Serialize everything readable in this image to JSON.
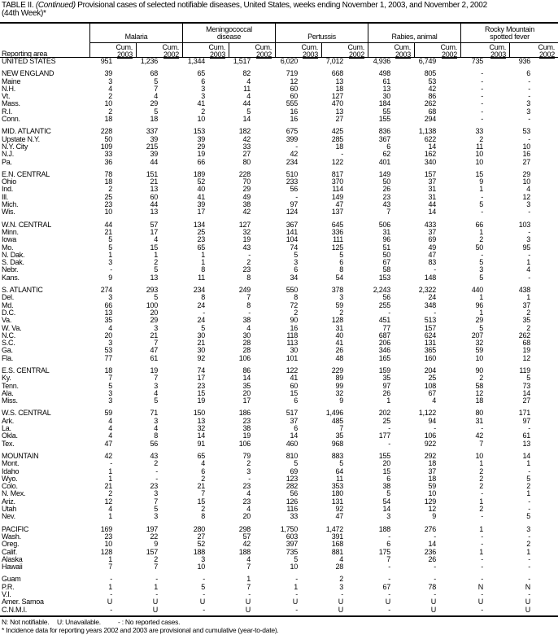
{
  "title": {
    "prefix": "TABLE II. ",
    "continued": "(Continued)",
    "text": " Provisional cases of selected notifiable diseases, United States, weeks ending November 1, 2003, and November 2, 2002",
    "line2": "(44th Week)*"
  },
  "header": {
    "reporting_area": "Reporting area",
    "groups": [
      {
        "l1": "",
        "l2": "Malaria"
      },
      {
        "l1": "Meningococcal",
        "l2": "disease"
      },
      {
        "l1": "",
        "l2": "Pertussis"
      },
      {
        "l1": "",
        "l2": "Rabies, animal"
      },
      {
        "l1": "Rocky Mountain",
        "l2": "spotted fever"
      }
    ],
    "sub": [
      {
        "l1": "Cum.",
        "l2": "2003"
      },
      {
        "l1": "Cum.",
        "l2": "2002"
      }
    ]
  },
  "rows": [
    [
      "UNITED STATES",
      "951",
      "1,236",
      "1,344",
      "1,517",
      "6,020",
      "7,012",
      "4,936",
      "6,749",
      "735",
      "936"
    ],
    [
      "NEW ENGLAND",
      "39",
      "68",
      "65",
      "82",
      "719",
      "668",
      "498",
      "805",
      "-",
      "6"
    ],
    [
      "Maine",
      "3",
      "5",
      "6",
      "4",
      "12",
      "13",
      "61",
      "53",
      "-",
      "-"
    ],
    [
      "N.H.",
      "4",
      "7",
      "3",
      "11",
      "60",
      "18",
      "13",
      "42",
      "-",
      "-"
    ],
    [
      "Vt.",
      "2",
      "4",
      "3",
      "4",
      "60",
      "127",
      "30",
      "86",
      "-",
      "-"
    ],
    [
      "Mass.",
      "10",
      "29",
      "41",
      "44",
      "555",
      "470",
      "184",
      "262",
      "-",
      "3"
    ],
    [
      "R.I.",
      "2",
      "5",
      "2",
      "5",
      "16",
      "13",
      "55",
      "68",
      "-",
      "3"
    ],
    [
      "Conn.",
      "18",
      "18",
      "10",
      "14",
      "16",
      "27",
      "155",
      "294",
      "-",
      "-"
    ],
    [
      "MID. ATLANTIC",
      "228",
      "337",
      "153",
      "182",
      "675",
      "425",
      "836",
      "1,138",
      "33",
      "53"
    ],
    [
      "Upstate N.Y.",
      "50",
      "39",
      "39",
      "42",
      "399",
      "285",
      "367",
      "622",
      "2",
      "-"
    ],
    [
      "N.Y. City",
      "109",
      "215",
      "29",
      "33",
      "-",
      "18",
      "6",
      "14",
      "11",
      "10"
    ],
    [
      "N.J.",
      "33",
      "39",
      "19",
      "27",
      "42",
      "-",
      "62",
      "162",
      "10",
      "16"
    ],
    [
      "Pa.",
      "36",
      "44",
      "66",
      "80",
      "234",
      "122",
      "401",
      "340",
      "10",
      "27"
    ],
    [
      "E.N. CENTRAL",
      "78",
      "151",
      "189",
      "228",
      "510",
      "817",
      "149",
      "157",
      "15",
      "29"
    ],
    [
      "Ohio",
      "18",
      "21",
      "52",
      "70",
      "233",
      "370",
      "50",
      "37",
      "9",
      "10"
    ],
    [
      "Ind.",
      "2",
      "13",
      "40",
      "29",
      "56",
      "114",
      "26",
      "31",
      "1",
      "4"
    ],
    [
      "Ill.",
      "25",
      "60",
      "41",
      "49",
      "-",
      "149",
      "23",
      "31",
      "-",
      "12"
    ],
    [
      "Mich.",
      "23",
      "44",
      "39",
      "38",
      "97",
      "47",
      "43",
      "44",
      "5",
      "3"
    ],
    [
      "Wis.",
      "10",
      "13",
      "17",
      "42",
      "124",
      "137",
      "7",
      "14",
      "-",
      "-"
    ],
    [
      "W.N. CENTRAL",
      "44",
      "57",
      "134",
      "127",
      "367",
      "645",
      "506",
      "433",
      "66",
      "103"
    ],
    [
      "Minn.",
      "21",
      "17",
      "25",
      "32",
      "141",
      "336",
      "31",
      "37",
      "1",
      "-"
    ],
    [
      "Iowa",
      "5",
      "4",
      "23",
      "19",
      "104",
      "111",
      "96",
      "69",
      "2",
      "3"
    ],
    [
      "Mo.",
      "5",
      "15",
      "65",
      "43",
      "74",
      "125",
      "51",
      "49",
      "50",
      "95"
    ],
    [
      "N. Dak.",
      "1",
      "1",
      "1",
      "-",
      "5",
      "5",
      "50",
      "47",
      "-",
      "-"
    ],
    [
      "S. Dak.",
      "3",
      "2",
      "1",
      "2",
      "3",
      "6",
      "67",
      "83",
      "5",
      "1"
    ],
    [
      "Nebr.",
      "-",
      "5",
      "8",
      "23",
      "6",
      "8",
      "58",
      "-",
      "3",
      "4"
    ],
    [
      "Kans.",
      "9",
      "13",
      "11",
      "8",
      "34",
      "54",
      "153",
      "148",
      "5",
      "-"
    ],
    [
      "S. ATLANTIC",
      "274",
      "293",
      "234",
      "249",
      "550",
      "378",
      "2,243",
      "2,322",
      "440",
      "438"
    ],
    [
      "Del.",
      "3",
      "5",
      "8",
      "7",
      "8",
      "3",
      "56",
      "24",
      "1",
      "1"
    ],
    [
      "Md.",
      "66",
      "100",
      "24",
      "8",
      "72",
      "59",
      "255",
      "348",
      "96",
      "37"
    ],
    [
      "D.C.",
      "13",
      "20",
      "-",
      "-",
      "2",
      "2",
      "-",
      "-",
      "1",
      "2"
    ],
    [
      "Va.",
      "35",
      "29",
      "24",
      "38",
      "90",
      "128",
      "451",
      "513",
      "29",
      "35"
    ],
    [
      "W. Va.",
      "4",
      "3",
      "5",
      "4",
      "16",
      "31",
      "77",
      "157",
      "5",
      "2"
    ],
    [
      "N.C.",
      "20",
      "21",
      "30",
      "30",
      "118",
      "40",
      "687",
      "624",
      "207",
      "262"
    ],
    [
      "S.C.",
      "3",
      "7",
      "21",
      "28",
      "113",
      "41",
      "206",
      "131",
      "32",
      "68"
    ],
    [
      "Ga.",
      "53",
      "47",
      "30",
      "28",
      "30",
      "26",
      "346",
      "365",
      "59",
      "19"
    ],
    [
      "Fla.",
      "77",
      "61",
      "92",
      "106",
      "101",
      "48",
      "165",
      "160",
      "10",
      "12"
    ],
    [
      "E.S. CENTRAL",
      "18",
      "19",
      "74",
      "86",
      "122",
      "229",
      "159",
      "204",
      "90",
      "119"
    ],
    [
      "Ky.",
      "7",
      "7",
      "17",
      "14",
      "41",
      "89",
      "35",
      "25",
      "2",
      "5"
    ],
    [
      "Tenn.",
      "5",
      "3",
      "23",
      "35",
      "60",
      "99",
      "97",
      "108",
      "58",
      "73"
    ],
    [
      "Ala.",
      "3",
      "4",
      "15",
      "20",
      "15",
      "32",
      "26",
      "67",
      "12",
      "14"
    ],
    [
      "Miss.",
      "3",
      "5",
      "19",
      "17",
      "6",
      "9",
      "1",
      "4",
      "18",
      "27"
    ],
    [
      "W.S. CENTRAL",
      "59",
      "71",
      "150",
      "186",
      "517",
      "1,496",
      "202",
      "1,122",
      "80",
      "171"
    ],
    [
      "Ark.",
      "4",
      "3",
      "13",
      "23",
      "37",
      "485",
      "25",
      "94",
      "31",
      "97"
    ],
    [
      "La.",
      "4",
      "4",
      "32",
      "38",
      "6",
      "7",
      "-",
      "-",
      "-",
      "-"
    ],
    [
      "Okla.",
      "4",
      "8",
      "14",
      "19",
      "14",
      "35",
      "177",
      "106",
      "42",
      "61"
    ],
    [
      "Tex.",
      "47",
      "56",
      "91",
      "106",
      "460",
      "968",
      "-",
      "922",
      "7",
      "13"
    ],
    [
      "MOUNTAIN",
      "42",
      "43",
      "65",
      "79",
      "810",
      "883",
      "155",
      "292",
      "10",
      "14"
    ],
    [
      "Mont.",
      "-",
      "2",
      "4",
      "2",
      "5",
      "5",
      "20",
      "18",
      "1",
      "1"
    ],
    [
      "Idaho",
      "1",
      "-",
      "6",
      "3",
      "69",
      "64",
      "15",
      "37",
      "2",
      "-"
    ],
    [
      "Wyo.",
      "1",
      "-",
      "2",
      "-",
      "123",
      "11",
      "6",
      "18",
      "2",
      "5"
    ],
    [
      "Colo.",
      "21",
      "23",
      "21",
      "23",
      "282",
      "353",
      "38",
      "59",
      "2",
      "2"
    ],
    [
      "N. Mex.",
      "2",
      "3",
      "7",
      "4",
      "56",
      "180",
      "5",
      "10",
      "-",
      "1"
    ],
    [
      "Ariz.",
      "12",
      "7",
      "15",
      "23",
      "126",
      "131",
      "54",
      "129",
      "1",
      "-"
    ],
    [
      "Utah",
      "4",
      "5",
      "2",
      "4",
      "116",
      "92",
      "14",
      "12",
      "2",
      "-"
    ],
    [
      "Nev.",
      "1",
      "3",
      "8",
      "20",
      "33",
      "47",
      "3",
      "9",
      "-",
      "5"
    ],
    [
      "PACIFIC",
      "169",
      "197",
      "280",
      "298",
      "1,750",
      "1,472",
      "188",
      "276",
      "1",
      "3"
    ],
    [
      "Wash.",
      "23",
      "22",
      "27",
      "57",
      "603",
      "391",
      "-",
      "-",
      "-",
      "-"
    ],
    [
      "Oreg.",
      "10",
      "9",
      "52",
      "42",
      "397",
      "168",
      "6",
      "14",
      "-",
      "2"
    ],
    [
      "Calif.",
      "128",
      "157",
      "188",
      "188",
      "735",
      "881",
      "175",
      "236",
      "1",
      "1"
    ],
    [
      "Alaska",
      "1",
      "2",
      "3",
      "4",
      "5",
      "4",
      "7",
      "26",
      "-",
      "-"
    ],
    [
      "Hawaii",
      "7",
      "7",
      "10",
      "7",
      "10",
      "28",
      "-",
      "-",
      "-",
      "-"
    ],
    [
      "Guam",
      "-",
      "-",
      "-",
      "1",
      "-",
      "2",
      "-",
      "-",
      "-",
      "-"
    ],
    [
      "P.R.",
      "1",
      "1",
      "5",
      "7",
      "1",
      "3",
      "67",
      "78",
      "N",
      "N"
    ],
    [
      "V.I.",
      "-",
      "-",
      "-",
      "-",
      "-",
      "-",
      "-",
      "-",
      "-",
      "-"
    ],
    [
      "Amer. Samoa",
      "U",
      "U",
      "U",
      "U",
      "U",
      "U",
      "U",
      "U",
      "U",
      "U"
    ],
    [
      "C.N.M.I.",
      "-",
      "U",
      "-",
      "U",
      "-",
      "U",
      "-",
      "U",
      "-",
      "U"
    ]
  ],
  "group_starts": [
    1,
    8,
    13,
    19,
    27,
    37,
    42,
    47,
    56,
    62
  ],
  "footnotes": {
    "n": "N: Not notifiable.",
    "u": "U: Unavailable.",
    "dash": "- : No reported cases.",
    "star": "* Incidence data for reporting years 2002 and 2003 are provisional and cumulative (year-to-date)."
  }
}
